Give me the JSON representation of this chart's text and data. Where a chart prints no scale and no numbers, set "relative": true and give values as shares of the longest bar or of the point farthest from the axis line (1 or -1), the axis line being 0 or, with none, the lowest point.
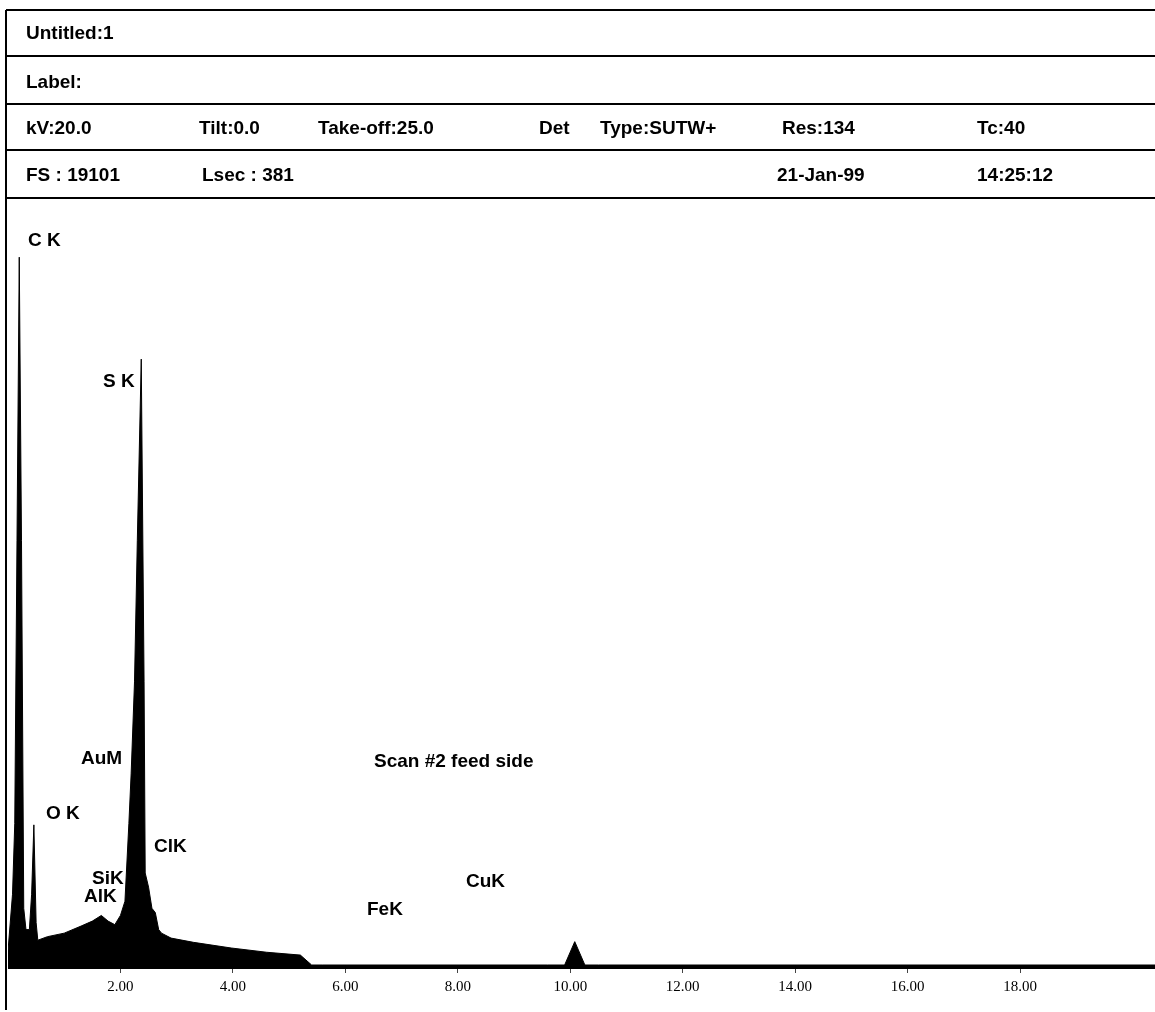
{
  "chart_data": {
    "type": "area",
    "title": "Untitled:1",
    "subtitle": "Label:",
    "relative": true,
    "marker": "none",
    "x": [
      0,
      0.08,
      0.12,
      0.16,
      0.2,
      0.24,
      0.28,
      0.32,
      0.38,
      0.42,
      0.46,
      0.5,
      0.53,
      0.7,
      1.0,
      1.3,
      1.5,
      1.66,
      1.78,
      1.9,
      2.0,
      2.08,
      2.15,
      2.19,
      2.25,
      2.3,
      2.37,
      2.42,
      2.44,
      2.5,
      2.56,
      2.62,
      2.68,
      2.73,
      2.9,
      3.3,
      3.97,
      4.6,
      5.2,
      5.4,
      5.6,
      9.6,
      9.9,
      10.08,
      10.26,
      10.5,
      20.4
    ],
    "series": [
      {
        "color": "#000000",
        "values": [
          0.02,
          0.1,
          0.2,
          0.6,
          1.0,
          0.6,
          0.08,
          0.05,
          0.05,
          0.1,
          0.198,
          0.06,
          0.035,
          0.04,
          0.045,
          0.055,
          0.062,
          0.07,
          0.062,
          0.057,
          0.07,
          0.09,
          0.2,
          0.27,
          0.4,
          0.6,
          0.856,
          0.4,
          0.13,
          0.11,
          0.08,
          0.074,
          0.05,
          0.045,
          0.038,
          0.032,
          0.024,
          0.018,
          0.014,
          0,
          0,
          0,
          0,
          0.033,
          0,
          0,
          0
        ]
      }
    ],
    "xlim": [
      0,
      20.4
    ],
    "xticks": [
      {
        "value": 2,
        "label": "2.00"
      },
      {
        "value": 4,
        "label": "4.00"
      },
      {
        "value": 6,
        "label": "6.00"
      },
      {
        "value": 8,
        "label": "8.00"
      },
      {
        "value": 10,
        "label": "10.00"
      },
      {
        "value": 12,
        "label": "12.00"
      },
      {
        "value": 14,
        "label": "14.00"
      },
      {
        "value": 16,
        "label": "16.00"
      },
      {
        "value": 18,
        "label": "18.00"
      }
    ],
    "annotations": [
      "kV:20.0",
      "Tilt:0.0",
      "Take-off:25.0",
      "Det",
      "Type:SUTW+",
      "Res:134",
      "Tc:40",
      "FS : 19101",
      "Lsec : 381",
      "21-Jan-99",
      "14:25:12",
      "Scan #2 feed side",
      "C K",
      "S K",
      "AuM",
      "O K",
      "ClK",
      "SiK",
      "AlK",
      "CuK",
      "FeK"
    ]
  }
}
